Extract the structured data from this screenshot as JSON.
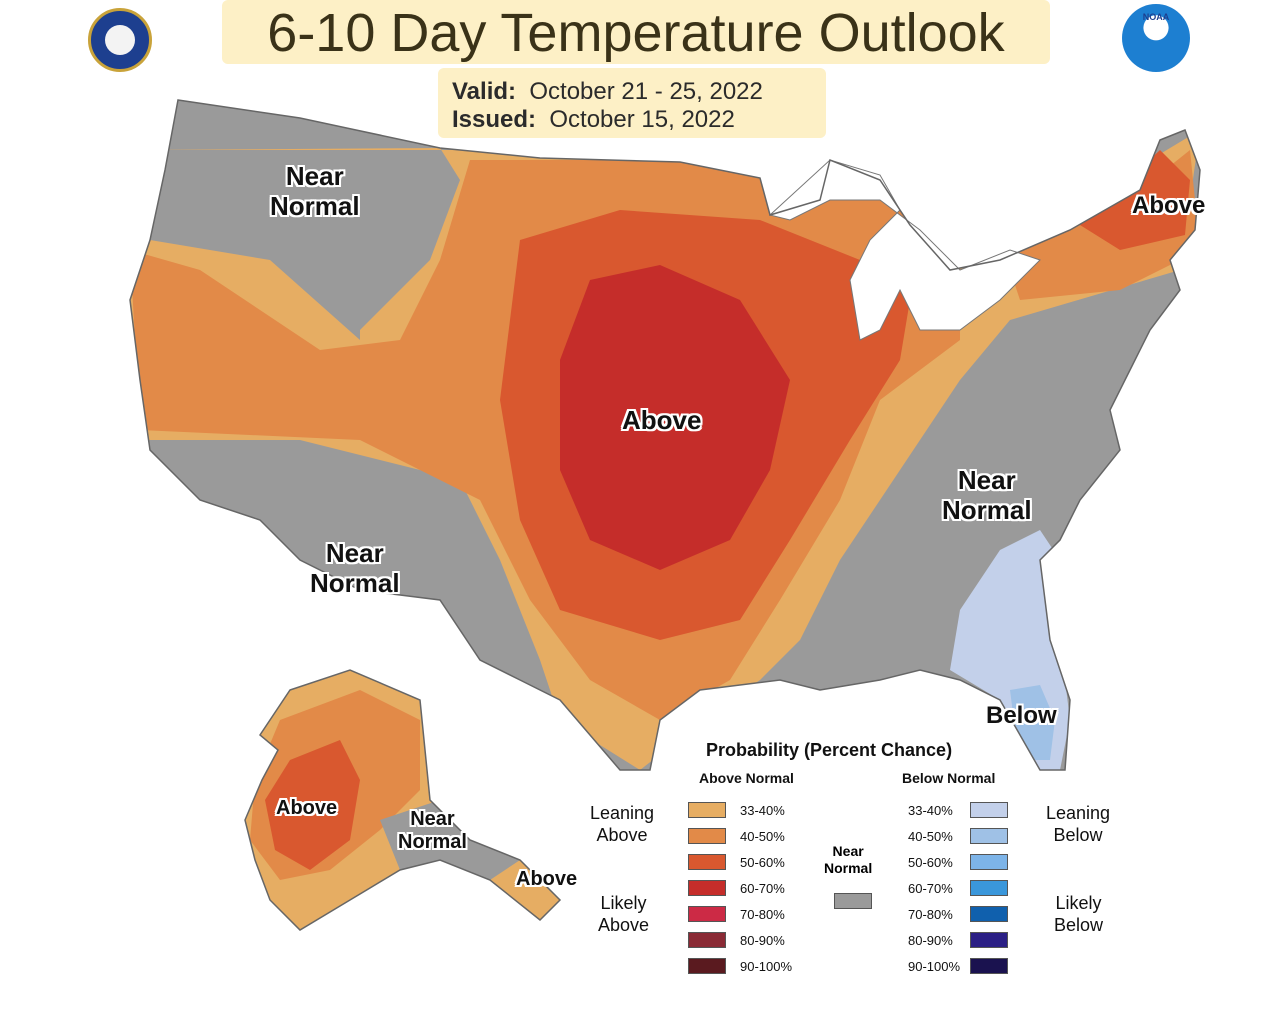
{
  "title": "6-10 Day Temperature Outlook",
  "valid": {
    "label": "Valid:",
    "value": "October 21 - 25, 2022"
  },
  "issued": {
    "label": "Issued:",
    "value": "October 15, 2022"
  },
  "logos": {
    "left": "doc-seal-icon",
    "right": "noaa-logo-icon",
    "right_text": "NOAA"
  },
  "colors": {
    "near_normal": "#9a9a9a",
    "above_33_40": "#e6ad63",
    "above_40_50": "#e28a48",
    "above_50_60": "#d9582f",
    "above_60_70": "#c52d2a",
    "below_33_40": "#c3d0ea",
    "below_40_50": "#9fc1e6",
    "map_land": "#ffffff"
  },
  "regions": [
    {
      "id": "nw-near",
      "text": "Near\nNormal"
    },
    {
      "id": "central-above",
      "text": "Above"
    },
    {
      "id": "ne-above",
      "text": "Above"
    },
    {
      "id": "se-near",
      "text": "Near\nNormal"
    },
    {
      "id": "sw-near",
      "text": "Near\nNormal"
    },
    {
      "id": "fl-below",
      "text": "Below"
    },
    {
      "id": "ak-above",
      "text": "Above"
    },
    {
      "id": "ak-near",
      "text": "Near\nNormal"
    },
    {
      "id": "ak-panhandle-above",
      "text": "Above"
    }
  ],
  "legend": {
    "title": "Probability (Percent Chance)",
    "above_heading": "Above Normal",
    "below_heading": "Below Normal",
    "near_label": "Near\nNormal",
    "leaning_above": "Leaning\nAbove",
    "likely_above": "Likely\nAbove",
    "leaning_below": "Leaning\nBelow",
    "likely_below": "Likely\nBelow",
    "above": [
      {
        "label": "33-40%",
        "color": "#e6ad63"
      },
      {
        "label": "40-50%",
        "color": "#e28a48"
      },
      {
        "label": "50-60%",
        "color": "#d9582f"
      },
      {
        "label": "60-70%",
        "color": "#c52d2a"
      },
      {
        "label": "70-80%",
        "color": "#cc2a45"
      },
      {
        "label": "80-90%",
        "color": "#8a2a35"
      },
      {
        "label": "90-100%",
        "color": "#5a1a1f"
      }
    ],
    "below": [
      {
        "label": "33-40%",
        "color": "#c3d0ea"
      },
      {
        "label": "40-50%",
        "color": "#9fc1e6"
      },
      {
        "label": "50-60%",
        "color": "#7db4e8"
      },
      {
        "label": "60-70%",
        "color": "#3a97db"
      },
      {
        "label": "70-80%",
        "color": "#1060ad"
      },
      {
        "label": "80-90%",
        "color": "#2b1f85"
      },
      {
        "label": "90-100%",
        "color": "#1a124f"
      }
    ]
  }
}
